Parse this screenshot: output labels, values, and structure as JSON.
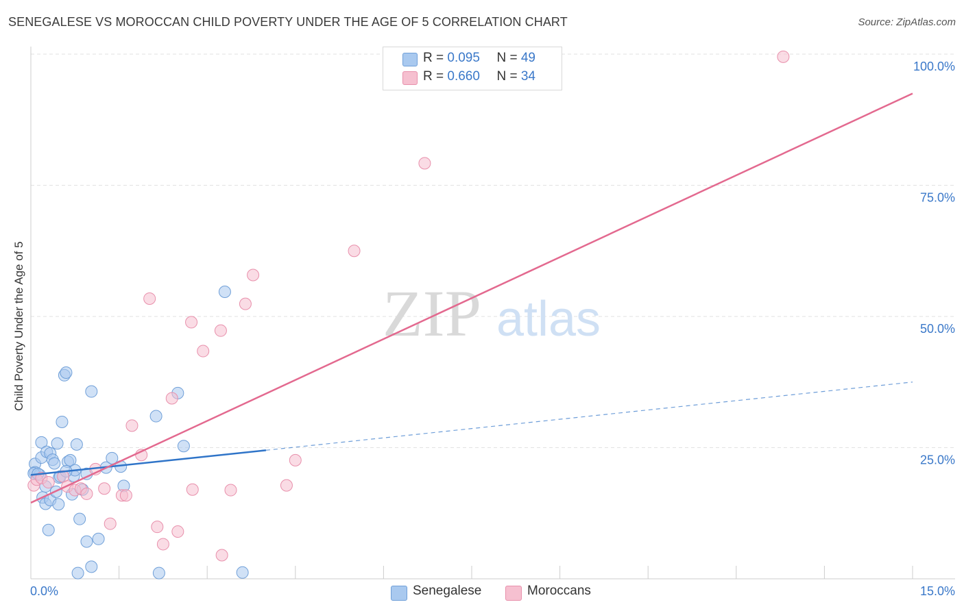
{
  "title": "SENEGALESE VS MOROCCAN CHILD POVERTY UNDER THE AGE OF 5 CORRELATION CHART",
  "source": "Source: ZipAtlas.com",
  "watermark": {
    "zip": "ZIP",
    "atlas": "atlas"
  },
  "colors": {
    "blue_fill": "#a9c9ef",
    "blue_stroke": "#6f9fd8",
    "blue_line": "#2f74c8",
    "pink_fill": "#f6c0d0",
    "pink_stroke": "#e88fab",
    "pink_line": "#e3698f",
    "tick_text": "#3a78c9",
    "grid": "#e2e2e2"
  },
  "legend": {
    "rows": [
      {
        "r_label": "R = ",
        "r_value": "0.095",
        "n_label": "N = ",
        "n_value": "49",
        "series": "blue"
      },
      {
        "r_label": "R = ",
        "r_value": "0.660",
        "n_label": "N = ",
        "n_value": "34",
        "series": "pink"
      }
    ]
  },
  "bottom_legend": [
    "Senegalese",
    "Moroccans"
  ],
  "chart_data": {
    "type": "scatter",
    "title": "SENEGALESE VS MOROCCAN CHILD POVERTY UNDER THE AGE OF 5 CORRELATION CHART",
    "xlabel": "",
    "ylabel": "Child Poverty Under the Age of 5",
    "xlim": [
      0,
      15
    ],
    "ylim": [
      0,
      100
    ],
    "x_tick_labels": [
      {
        "value": 0,
        "label": "0.0%"
      },
      {
        "value": 15,
        "label": "15.0%"
      }
    ],
    "y_tick_labels": [
      {
        "value": 25,
        "label": "25.0%"
      },
      {
        "value": 50,
        "label": "50.0%"
      },
      {
        "value": 75,
        "label": "75.0%"
      },
      {
        "value": 100,
        "label": "100.0%"
      }
    ],
    "series": [
      {
        "name": "Senegalese",
        "color": "blue",
        "R": 0.095,
        "N": 49,
        "trend": {
          "x0": 0.0,
          "y0": 19.8,
          "x1": 4.0,
          "y1": 24.5,
          "dash_x1": 15.0,
          "dash_y1": 37.5
        },
        "points": [
          [
            0.07,
            21.9
          ],
          [
            0.07,
            20.3
          ],
          [
            0.15,
            19.8
          ],
          [
            0.18,
            26.0
          ],
          [
            0.18,
            23.1
          ],
          [
            0.2,
            15.5
          ],
          [
            0.25,
            14.3
          ],
          [
            0.25,
            17.6
          ],
          [
            0.27,
            24.2
          ],
          [
            0.3,
            9.3
          ],
          [
            0.33,
            15.0
          ],
          [
            0.33,
            23.9
          ],
          [
            0.37,
            22.7
          ],
          [
            0.4,
            22.0
          ],
          [
            0.43,
            16.6
          ],
          [
            0.45,
            25.8
          ],
          [
            0.47,
            14.2
          ],
          [
            0.48,
            19.3
          ],
          [
            0.5,
            19.5
          ],
          [
            0.53,
            29.9
          ],
          [
            0.57,
            38.8
          ],
          [
            0.6,
            39.3
          ],
          [
            0.63,
            22.3
          ],
          [
            0.67,
            22.6
          ],
          [
            0.7,
            16.1
          ],
          [
            0.73,
            19.6
          ],
          [
            0.75,
            20.7
          ],
          [
            0.78,
            25.6
          ],
          [
            0.8,
            1.1
          ],
          [
            0.83,
            11.4
          ],
          [
            0.88,
            17.0
          ],
          [
            0.95,
            7.1
          ],
          [
            1.03,
            2.3
          ],
          [
            1.03,
            35.7
          ],
          [
            1.15,
            7.6
          ],
          [
            1.28,
            21.2
          ],
          [
            1.38,
            23.0
          ],
          [
            1.53,
            21.4
          ],
          [
            1.58,
            17.7
          ],
          [
            2.13,
            31.0
          ],
          [
            2.18,
            1.1
          ],
          [
            2.5,
            35.4
          ],
          [
            2.6,
            25.3
          ],
          [
            3.3,
            54.7
          ],
          [
            3.6,
            1.2
          ],
          [
            0.05,
            20.1
          ],
          [
            0.12,
            20.0
          ],
          [
            0.6,
            20.5
          ],
          [
            0.95,
            20.0
          ]
        ]
      },
      {
        "name": "Moroccans",
        "color": "pink",
        "R": 0.66,
        "N": 34,
        "trend": {
          "x0": 0.0,
          "y0": 14.5,
          "x1": 15.0,
          "y1": 92.5
        },
        "points": [
          [
            0.05,
            17.8
          ],
          [
            0.1,
            18.9
          ],
          [
            0.18,
            19.2
          ],
          [
            0.3,
            18.4
          ],
          [
            0.55,
            19.5
          ],
          [
            0.62,
            17.6
          ],
          [
            0.75,
            16.9
          ],
          [
            0.85,
            17.2
          ],
          [
            0.95,
            16.2
          ],
          [
            1.1,
            20.9
          ],
          [
            1.25,
            17.2
          ],
          [
            1.35,
            10.5
          ],
          [
            1.55,
            15.9
          ],
          [
            1.62,
            15.9
          ],
          [
            1.72,
            29.2
          ],
          [
            1.88,
            23.6
          ],
          [
            2.02,
            53.4
          ],
          [
            2.15,
            9.9
          ],
          [
            2.25,
            6.6
          ],
          [
            2.4,
            34.4
          ],
          [
            2.5,
            9.0
          ],
          [
            2.73,
            48.9
          ],
          [
            2.75,
            17.0
          ],
          [
            2.93,
            43.4
          ],
          [
            3.23,
            47.3
          ],
          [
            3.25,
            4.5
          ],
          [
            3.4,
            16.9
          ],
          [
            3.65,
            52.4
          ],
          [
            3.78,
            57.9
          ],
          [
            4.35,
            17.8
          ],
          [
            4.5,
            22.6
          ],
          [
            5.5,
            62.5
          ],
          [
            6.7,
            79.2
          ],
          [
            12.8,
            99.5
          ]
        ]
      }
    ]
  }
}
